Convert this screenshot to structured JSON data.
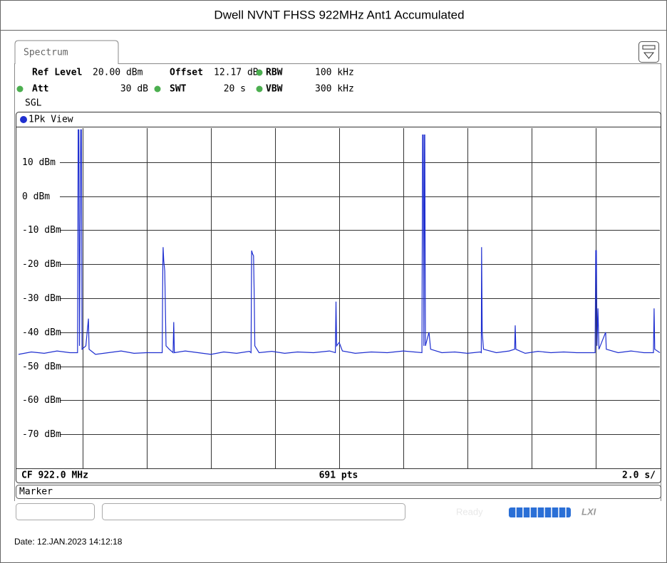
{
  "chart_data": {
    "type": "line",
    "title": "Dwell NVNT FHSS 922MHz Ant1 Accumulated",
    "view_label": "1Pk View",
    "xlim": [
      0,
      20
    ],
    "ylim": [
      -80,
      20
    ],
    "yticks": [
      {
        "value": 10,
        "label": "10 dBm"
      },
      {
        "value": 0,
        "label": "0 dBm"
      },
      {
        "value": -10,
        "label": "-10 dBm"
      },
      {
        "value": -20,
        "label": "-20 dBm"
      },
      {
        "value": -30,
        "label": "-30 dBm"
      },
      {
        "value": -40,
        "label": "-40 dBm"
      },
      {
        "value": -50,
        "label": "-50 dBm"
      },
      {
        "value": -60,
        "label": "-60 dBm"
      },
      {
        "value": -70,
        "label": "-70 dBm"
      }
    ],
    "grid": true,
    "series": [
      {
        "name": "1Pk View",
        "color": "#1f2fd0",
        "x": [
          0,
          0.4,
          0.8,
          1.2,
          1.6,
          1.84,
          1.86,
          1.88,
          1.9,
          1.94,
          1.96,
          1.98,
          2.1,
          2.18,
          2.2,
          2.4,
          2.8,
          3.2,
          3.6,
          4.0,
          4.48,
          4.5,
          4.51,
          4.53,
          4.56,
          4.6,
          4.7,
          4.82,
          4.84,
          4.86,
          5.2,
          5.6,
          6.0,
          6.4,
          6.8,
          7.2,
          7.25,
          7.27,
          7.3,
          7.33,
          7.35,
          7.37,
          7.5,
          7.9,
          8.3,
          8.7,
          9.2,
          9.7,
          9.88,
          9.9,
          9.92,
          10.0,
          10.1,
          10.5,
          11.0,
          11.5,
          12.0,
          12.58,
          12.6,
          12.62,
          12.64,
          12.66,
          12.67,
          12.69,
          12.8,
          12.85,
          13.2,
          13.6,
          14.0,
          14.4,
          14.43,
          14.44,
          14.46,
          14.5,
          14.9,
          15.3,
          15.47,
          15.49,
          15.51,
          15.8,
          16.2,
          16.6,
          17.0,
          17.4,
          17.98,
          18.0,
          18.02,
          18.04,
          18.07,
          18.1,
          18.31,
          18.33,
          18.7,
          19.1,
          19.5,
          19.8,
          19.82,
          19.84,
          20
        ],
        "values": [
          -46.5,
          -45.8,
          -46.2,
          -45.5,
          -46,
          -46,
          19.5,
          19.5,
          -44,
          19.5,
          19.5,
          -45,
          -44,
          -36,
          -45,
          -46.5,
          -46,
          -45.5,
          -46.2,
          -46,
          -46,
          -20,
          -15,
          -19,
          -22,
          -44,
          -45,
          -46,
          -37,
          -46,
          -45.5,
          -46,
          -46.5,
          -45.8,
          -46.2,
          -45.6,
          -46,
          -16,
          -17,
          -17.5,
          -30,
          -44,
          -46,
          -45.6,
          -46.2,
          -45.8,
          -46,
          -45.5,
          -46,
          -31,
          -44,
          -43,
          -45.5,
          -46.2,
          -45.8,
          -46,
          -45.5,
          -46,
          18,
          18,
          -44,
          18,
          18,
          -44,
          -40,
          -45,
          -46,
          -45.8,
          -46.2,
          -45.8,
          -46,
          -15,
          -40,
          -45,
          -46,
          -45.5,
          -45,
          -38,
          -45,
          -46.2,
          -45.6,
          -46,
          -45.8,
          -46,
          -46,
          -16,
          -16,
          -44,
          -33,
          -45,
          -40,
          -45,
          -46,
          -45.5,
          -46,
          -46,
          -33,
          -45,
          -46
        ]
      }
    ]
  },
  "instrument": {
    "tab": "Spectrum",
    "settings": {
      "ref_level_label": "Ref Level",
      "ref_level": "20.00 dBm",
      "offset_label": "Offset",
      "offset": "12.17 dB",
      "rbw_label": "RBW",
      "rbw": "100 kHz",
      "att_label": "Att",
      "att": "30 dB",
      "swt_label": "SWT",
      "swt": "20 s",
      "vbw_label": "VBW",
      "vbw": "300 kHz",
      "mode": "SGL"
    },
    "footer": {
      "center_freq": "CF 922.0 MHz",
      "points": "691 pts",
      "sweep": "2.0 s/"
    },
    "marker_panel": "Marker",
    "status": "Ready",
    "lxi": "LXI",
    "date": "Date: 12.JAN.2023  14:12:18"
  }
}
